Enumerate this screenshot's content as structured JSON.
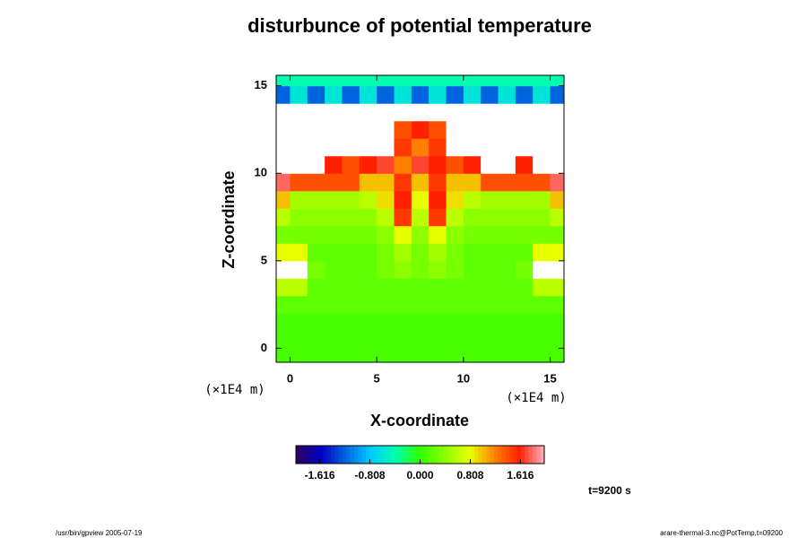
{
  "chart_data": {
    "type": "heatmap",
    "title": "disturbunce of potential temperature",
    "x_label": "X-coordinate",
    "y_label": "Z-coordinate",
    "x_unit": "(×1E4 m)",
    "y_unit": "(×1E4 m)",
    "annotation": "t=9200 s",
    "footer_left": "/usr/bin/gpview 2005-07-19",
    "footer_right": "arare-thermal-3.nc@PotTemp,t=09200",
    "xlim": [
      -0.8,
      15.8
    ],
    "ylim": [
      -0.8,
      15.6
    ],
    "xticks": [
      0,
      5,
      10,
      15
    ],
    "yticks": [
      0,
      5,
      10,
      15
    ],
    "x": [
      -0.5,
      0.5,
      1.5,
      2.5,
      3.5,
      4.5,
      5.5,
      6.5,
      7.5,
      8.5,
      9.5,
      10.5,
      11.5,
      12.5,
      13.5,
      14.5,
      15.5
    ],
    "z": [
      -0.5,
      0.5,
      1.5,
      2.5,
      3.5,
      4.5,
      5.5,
      6.5,
      7.5,
      8.5,
      9.5,
      10.5,
      11.5,
      12.5,
      13.5,
      14.5,
      15.5
    ],
    "values": [
      [
        0.1,
        0.1,
        0.1,
        0.1,
        0.1,
        0.1,
        0.1,
        0.1,
        0.1,
        0.1,
        0.1,
        0.1,
        0.1,
        0.1,
        0.1,
        0.1,
        0.1
      ],
      [
        0.1,
        0.1,
        0.1,
        0.1,
        0.1,
        0.1,
        0.1,
        0.1,
        0.1,
        0.1,
        0.1,
        0.1,
        0.1,
        0.1,
        0.1,
        0.1,
        0.1
      ],
      [
        0.1,
        0.1,
        0.1,
        0.1,
        0.1,
        0.1,
        0.1,
        0.1,
        0.1,
        0.1,
        0.1,
        0.1,
        0.1,
        0.1,
        0.1,
        0.1,
        0.1
      ],
      [
        0.2,
        0.2,
        0.2,
        0.2,
        0.2,
        0.2,
        0.2,
        0.2,
        0.2,
        0.2,
        0.2,
        0.2,
        0.2,
        0.2,
        0.2,
        0.2,
        0.2
      ],
      [
        0.6,
        0.6,
        0.2,
        0.2,
        0.2,
        0.2,
        0.2,
        0.2,
        0.2,
        0.2,
        0.2,
        0.2,
        0.2,
        0.2,
        0.2,
        0.6,
        0.6
      ],
      [
        2.5,
        2.5,
        0.3,
        0.2,
        0.2,
        0.2,
        0.3,
        0.4,
        0.3,
        0.4,
        0.3,
        0.2,
        0.2,
        0.2,
        0.3,
        2.5,
        2.5
      ],
      [
        0.8,
        0.8,
        0.2,
        0.2,
        0.2,
        0.2,
        0.3,
        0.5,
        0.3,
        0.5,
        0.3,
        0.2,
        0.2,
        0.2,
        0.2,
        0.8,
        0.8
      ],
      [
        0.3,
        0.3,
        0.3,
        0.3,
        0.3,
        0.3,
        0.4,
        0.8,
        0.4,
        0.8,
        0.4,
        0.3,
        0.3,
        0.3,
        0.3,
        0.3,
        0.3
      ],
      [
        0.6,
        0.4,
        0.4,
        0.4,
        0.4,
        0.4,
        0.6,
        1.5,
        0.6,
        1.5,
        0.6,
        0.4,
        0.4,
        0.4,
        0.4,
        0.4,
        0.6
      ],
      [
        1.0,
        0.5,
        0.5,
        0.5,
        0.5,
        0.6,
        0.9,
        1.6,
        0.8,
        1.6,
        0.9,
        0.6,
        0.5,
        0.5,
        0.5,
        0.5,
        1.0
      ],
      [
        1.8,
        1.4,
        1.4,
        1.4,
        1.4,
        1.0,
        1.0,
        1.5,
        1.0,
        1.5,
        1.0,
        1.0,
        1.4,
        1.4,
        1.4,
        1.4,
        1.8
      ],
      [
        2.5,
        2.5,
        2.5,
        1.6,
        1.4,
        1.6,
        1.7,
        1.2,
        1.7,
        1.6,
        1.4,
        1.6,
        2.5,
        2.5,
        1.6,
        2.5,
        2.5
      ],
      [
        2.5,
        2.5,
        2.5,
        2.5,
        2.5,
        2.5,
        2.5,
        1.5,
        1.2,
        1.5,
        2.5,
        2.5,
        2.5,
        2.5,
        2.5,
        2.5,
        2.5
      ],
      [
        2.5,
        2.5,
        2.5,
        2.5,
        2.5,
        2.5,
        2.5,
        1.4,
        1.6,
        1.4,
        2.5,
        2.5,
        2.5,
        2.5,
        2.5,
        2.5,
        2.5
      ],
      [
        2.5,
        2.5,
        2.5,
        2.5,
        2.5,
        2.5,
        2.5,
        2.5,
        2.5,
        2.5,
        2.5,
        2.5,
        2.5,
        2.5,
        2.5,
        2.5,
        2.5
      ],
      [
        -1.2,
        -0.6,
        -1.2,
        -0.6,
        -1.2,
        -0.6,
        -1.2,
        -0.6,
        -1.2,
        -0.6,
        -1.2,
        -0.6,
        -1.2,
        -0.6,
        -1.2,
        -0.6,
        -1.2
      ],
      [
        -0.4,
        -0.4,
        -0.4,
        -0.4,
        -0.4,
        -0.4,
        -0.4,
        -0.4,
        -0.4,
        -0.4,
        -0.4,
        -0.4,
        -0.4,
        -0.4,
        -0.4,
        -0.4,
        -0.4
      ]
    ],
    "colorbar_lim": [
      -2.0,
      2.0
    ],
    "colorbar_ticks": [
      -1.616,
      -0.808,
      {
        "value": 0,
        "label": "0.000"
      },
      0.808,
      1.616
    ]
  }
}
